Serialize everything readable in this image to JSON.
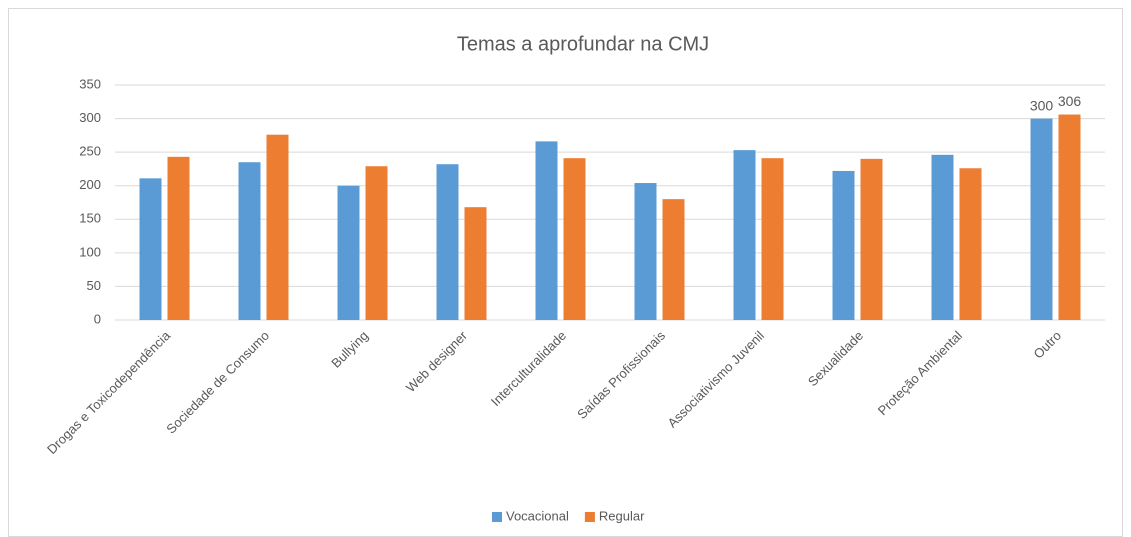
{
  "chart_data": {
    "type": "bar",
    "title": "Temas a aprofundar na CMJ",
    "categories": [
      "Drogas e Toxicodependência",
      "Sociedade de Consumo",
      "Bullying",
      "Web designer",
      "Interculturalidade",
      "Saídas Profissionais",
      "Associativismo Juvenil",
      "Sexualidade",
      "Proteção Ambiental",
      "Outro"
    ],
    "series": [
      {
        "name": "Vocacional",
        "color": "#5b9bd5",
        "values": [
          211,
          235,
          200,
          232,
          266,
          204,
          253,
          222,
          246,
          300
        ],
        "value_labels": [
          null,
          null,
          null,
          null,
          null,
          null,
          null,
          null,
          null,
          "300"
        ]
      },
      {
        "name": "Regular",
        "color": "#ed7d31",
        "values": [
          243,
          276,
          229,
          168,
          241,
          180,
          241,
          240,
          226,
          306
        ],
        "value_labels": [
          null,
          null,
          null,
          null,
          null,
          null,
          null,
          null,
          null,
          "306"
        ]
      }
    ],
    "ylim": [
      0,
      350
    ],
    "yticks": [
      0,
      50,
      100,
      150,
      200,
      250,
      300,
      350
    ],
    "grid": true,
    "legend": "bottom"
  }
}
